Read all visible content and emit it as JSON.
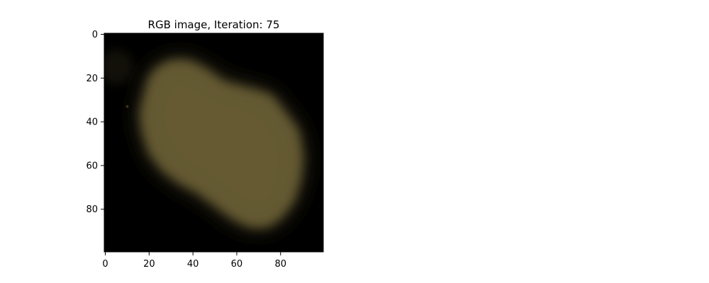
{
  "chart_data": {
    "type": "heatmap",
    "title": "RGB image, Iteration: 75",
    "xlabel": "",
    "ylabel": "",
    "image_size": [
      100,
      100
    ],
    "xlim": [
      -0.5,
      99.5
    ],
    "ylim": [
      99.5,
      -0.5
    ],
    "x_ticks": [
      0,
      20,
      40,
      60,
      80
    ],
    "x_tick_labels": [
      "0",
      "20",
      "40",
      "60",
      "80"
    ],
    "y_ticks": [
      0,
      20,
      40,
      60,
      80
    ],
    "y_tick_labels": [
      "0",
      "20",
      "40",
      "60",
      "80"
    ],
    "grid": false,
    "background_color": "#000000",
    "blob_color": "#6b5f35",
    "blob_dim_color": "#4a4226",
    "blob_outline": [
      [
        18,
        28
      ],
      [
        20,
        20
      ],
      [
        24,
        15
      ],
      [
        30,
        12
      ],
      [
        38,
        12
      ],
      [
        46,
        16
      ],
      [
        54,
        22
      ],
      [
        62,
        24
      ],
      [
        70,
        26
      ],
      [
        76,
        28
      ],
      [
        82,
        36
      ],
      [
        88,
        44
      ],
      [
        90,
        56
      ],
      [
        89,
        66
      ],
      [
        86,
        76
      ],
      [
        80,
        84
      ],
      [
        74,
        88
      ],
      [
        66,
        88
      ],
      [
        58,
        84
      ],
      [
        50,
        78
      ],
      [
        42,
        72
      ],
      [
        34,
        68
      ],
      [
        26,
        62
      ],
      [
        20,
        54
      ],
      [
        17,
        44
      ],
      [
        16,
        36
      ]
    ],
    "faint_spots": [
      {
        "x": 5,
        "y": 15,
        "radius": 8
      },
      {
        "x": 10,
        "y": 33,
        "radius": 0.6
      }
    ]
  }
}
